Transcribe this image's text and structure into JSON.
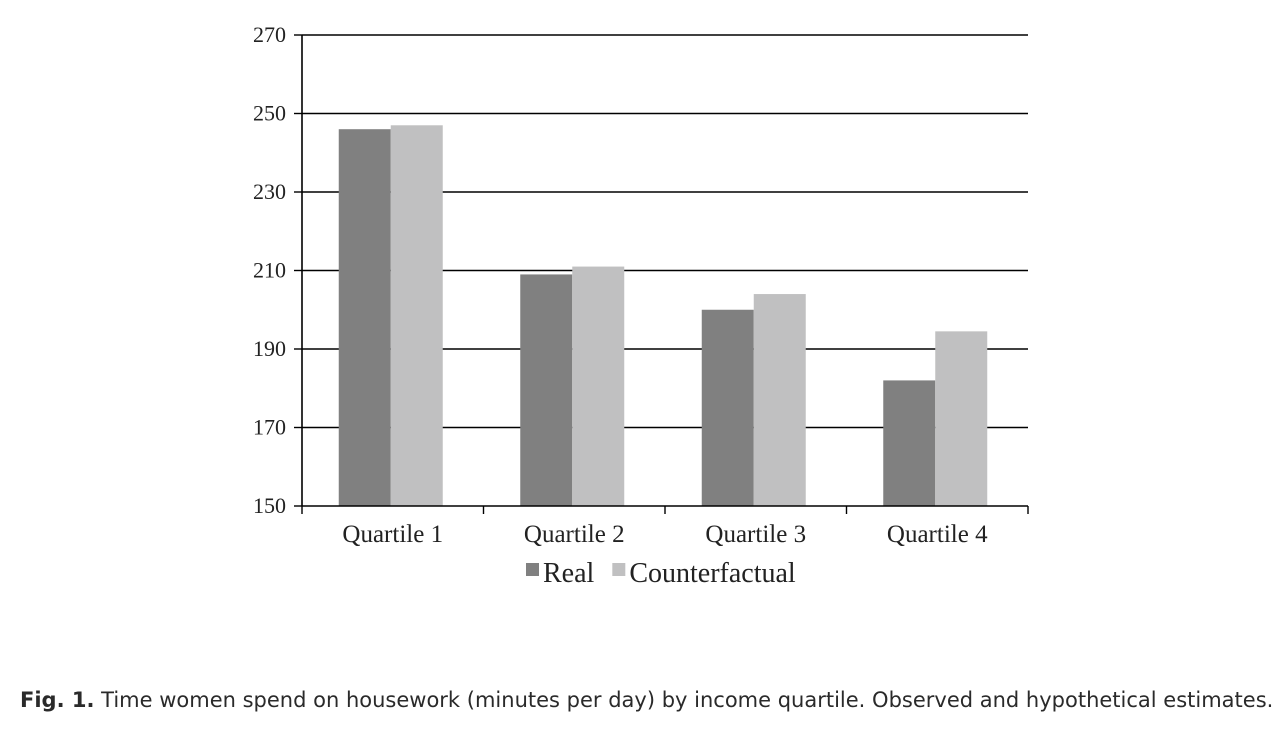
{
  "chart_data": {
    "type": "bar",
    "title": "",
    "xlabel": "",
    "ylabel": "",
    "categories": [
      "Quartile 1",
      "Quartile 2",
      "Quartile 3",
      "Quartile 4"
    ],
    "series": [
      {
        "name": "Real",
        "values": [
          246,
          209,
          200,
          182
        ],
        "color": "#808080"
      },
      {
        "name": "Counterfactual",
        "values": [
          247,
          211,
          204,
          194.5
        ],
        "color": "#c0c0c1"
      }
    ],
    "ylim": [
      150,
      270
    ],
    "yticks": [
      150,
      170,
      190,
      210,
      230,
      250,
      270
    ],
    "grid": true,
    "legend_position": "bottom"
  },
  "caption": {
    "label": "Fig. 1.",
    "text": "Time women spend on housework (minutes per day) by income quartile. Observed and hypothetical estimates."
  }
}
